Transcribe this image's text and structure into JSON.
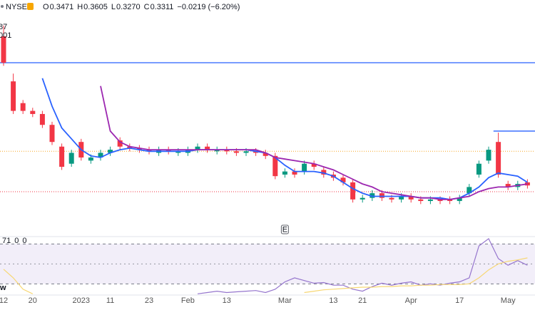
{
  "chart_data": {
    "type": "candlestick",
    "exchange": "NYSE",
    "ohlc_legend": [
      {
        "key": "O",
        "value": "0.3471"
      },
      {
        "key": "H",
        "value": "0.3605"
      },
      {
        "key": "L",
        "value": "0.3270"
      },
      {
        "key": "C",
        "value": "0.3311"
      }
    ],
    "change": "−0.0219 (−6.20%)",
    "side_labels": [
      "87",
      "001"
    ],
    "osc_legend": [
      "71",
      "0",
      "0"
    ],
    "earnings_marker": "E",
    "corner_label": "w",
    "categories": [
      "12",
      null,
      null,
      "20",
      null,
      null,
      null,
      null,
      "2023",
      null,
      null,
      "11",
      null,
      null,
      null,
      "23",
      null,
      null,
      null,
      "Feb",
      null,
      null,
      null,
      "13",
      null,
      null,
      null,
      null,
      null,
      "Mar",
      null,
      null,
      null,
      null,
      "13",
      null,
      null,
      "21",
      null,
      null,
      null,
      null,
      "Apr",
      null,
      null,
      null,
      null,
      "17",
      null,
      null,
      null,
      null,
      "May",
      null,
      null
    ],
    "open": [
      1.28,
      0.99,
      0.85,
      0.8,
      0.78,
      0.71,
      0.57,
      0.46,
      0.6,
      0.48,
      0.5,
      0.53,
      0.61,
      0.57,
      0.56,
      0.55,
      0.53,
      0.55,
      0.53,
      0.53,
      0.55,
      0.57,
      0.54,
      0.55,
      0.54,
      0.53,
      0.54,
      0.53,
      0.51,
      0.39,
      0.41,
      0.41,
      0.46,
      0.42,
      0.39,
      0.37,
      0.34,
      0.23,
      0.24,
      0.27,
      0.24,
      0.23,
      0.25,
      0.23,
      0.22,
      0.23,
      0.23,
      0.22,
      0.27,
      0.39,
      0.48,
      0.6,
      0.33,
      0.31,
      0.34
    ],
    "high": [
      1.35,
      1.04,
      0.87,
      0.82,
      0.8,
      0.73,
      0.59,
      0.55,
      0.62,
      0.52,
      0.55,
      0.57,
      0.63,
      0.59,
      0.58,
      0.57,
      0.57,
      0.57,
      0.56,
      0.57,
      0.59,
      0.59,
      0.57,
      0.57,
      0.56,
      0.56,
      0.56,
      0.55,
      0.53,
      0.43,
      0.43,
      0.48,
      0.48,
      0.44,
      0.41,
      0.39,
      0.36,
      0.26,
      0.29,
      0.29,
      0.26,
      0.27,
      0.27,
      0.25,
      0.25,
      0.25,
      0.25,
      0.26,
      0.33,
      0.48,
      0.57,
      0.66,
      0.35,
      0.35,
      0.36
    ],
    "low": [
      1.09,
      0.78,
      0.78,
      0.76,
      0.69,
      0.58,
      0.42,
      0.44,
      0.48,
      0.46,
      0.48,
      0.51,
      0.55,
      0.54,
      0.53,
      0.52,
      0.51,
      0.52,
      0.51,
      0.51,
      0.53,
      0.53,
      0.52,
      0.52,
      0.51,
      0.51,
      0.51,
      0.49,
      0.36,
      0.37,
      0.37,
      0.39,
      0.42,
      0.37,
      0.35,
      0.32,
      0.21,
      0.21,
      0.22,
      0.22,
      0.21,
      0.21,
      0.21,
      0.2,
      0.2,
      0.2,
      0.2,
      0.2,
      0.25,
      0.37,
      0.46,
      0.37,
      0.29,
      0.29,
      0.3
    ],
    "close": [
      1.11,
      0.8,
      0.8,
      0.78,
      0.71,
      0.6,
      0.44,
      0.53,
      0.5,
      0.5,
      0.53,
      0.55,
      0.57,
      0.56,
      0.55,
      0.54,
      0.55,
      0.54,
      0.54,
      0.55,
      0.57,
      0.55,
      0.55,
      0.54,
      0.53,
      0.54,
      0.53,
      0.51,
      0.38,
      0.41,
      0.39,
      0.46,
      0.44,
      0.39,
      0.37,
      0.34,
      0.23,
      0.24,
      0.27,
      0.24,
      0.23,
      0.25,
      0.23,
      0.22,
      0.23,
      0.22,
      0.22,
      0.24,
      0.31,
      0.46,
      0.55,
      0.39,
      0.31,
      0.33,
      0.32
    ],
    "up_color": "#089981",
    "down_color": "#f23645",
    "ylim": [
      0,
      1.5
    ],
    "lines": [
      {
        "color": "#2962ff",
        "values": [
          null,
          null,
          null,
          null,
          1.01,
          0.83,
          0.69,
          0.62,
          0.55,
          0.51,
          0.5,
          0.53,
          0.55,
          0.56,
          0.55,
          0.54,
          0.54,
          0.54,
          0.54,
          0.54,
          0.55,
          0.55,
          0.55,
          0.55,
          0.55,
          0.55,
          0.54,
          0.53,
          0.5,
          0.45,
          0.41,
          0.41,
          0.41,
          0.4,
          0.38,
          0.34,
          0.3,
          0.27,
          0.25,
          0.25,
          0.25,
          0.25,
          0.25,
          0.24,
          0.24,
          0.24,
          0.23,
          0.24,
          0.27,
          0.31,
          0.37,
          0.4,
          0.39,
          0.38,
          0.34
        ]
      },
      {
        "color": "#9c27b0",
        "values": [
          null,
          null,
          null,
          null,
          null,
          null,
          null,
          null,
          null,
          null,
          0.96,
          0.67,
          0.6,
          0.57,
          0.56,
          0.55,
          0.55,
          0.55,
          0.55,
          0.55,
          0.55,
          0.55,
          0.55,
          0.55,
          0.55,
          0.55,
          0.55,
          0.53,
          0.5,
          0.49,
          0.48,
          0.47,
          0.46,
          0.44,
          0.42,
          0.39,
          0.36,
          0.33,
          0.31,
          0.28,
          0.27,
          0.26,
          0.25,
          0.24,
          0.24,
          0.23,
          0.23,
          0.24,
          0.25,
          0.28,
          0.3,
          0.31,
          0.31,
          0.32,
          0.33
        ]
      }
    ],
    "levels": [
      {
        "value": 1.11,
        "color": "#2962ff",
        "style": "solid"
      },
      {
        "value": 0.54,
        "color": "#f5a623",
        "style": "dotted"
      },
      {
        "value": 0.28,
        "color": "#f23645",
        "style": "dotted"
      },
      {
        "value": 0.67,
        "color": "#2962ff",
        "style": "step",
        "start": 51
      }
    ],
    "oscillator": {
      "ylim": [
        0,
        90
      ],
      "band": [
        20,
        80
      ],
      "middle": 50,
      "series": [
        {
          "color": "#9575cd",
          "values": [
            null,
            null,
            null,
            null,
            null,
            null,
            null,
            null,
            null,
            null,
            null,
            null,
            null,
            null,
            null,
            null,
            null,
            null,
            null,
            null,
            5,
            7,
            9,
            7,
            8,
            9,
            10,
            7,
            12,
            23,
            29,
            25,
            21,
            22,
            18,
            18,
            12,
            9,
            16,
            21,
            18,
            21,
            23,
            18,
            20,
            18,
            21,
            23,
            29,
            77,
            88,
            58,
            48,
            55,
            48
          ]
        },
        {
          "color": "#f7d774",
          "values": [
            42,
            29,
            12,
            5,
            null,
            null,
            null,
            null,
            null,
            null,
            null,
            null,
            null,
            null,
            null,
            null,
            null,
            null,
            null,
            null,
            null,
            null,
            null,
            null,
            null,
            null,
            null,
            null,
            null,
            null,
            null,
            7,
            9,
            11,
            12,
            13,
            14,
            15,
            15,
            16,
            16,
            17,
            17,
            18,
            18,
            19,
            19,
            19,
            20,
            29,
            41,
            50,
            54,
            56,
            59
          ]
        }
      ]
    }
  }
}
